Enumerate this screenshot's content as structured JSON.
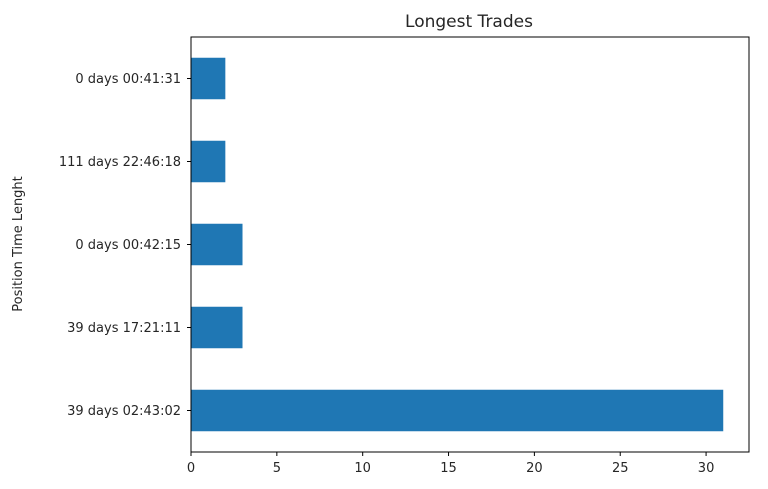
{
  "chart_data": {
    "type": "bar",
    "orientation": "horizontal",
    "title": "Longest Trades",
    "xlabel": "",
    "ylabel": "Position Time Lenght",
    "categories": [
      "39 days 02:43:02",
      "39 days 17:21:11",
      "0 days 00:42:15",
      "111 days 22:46:18",
      "0 days 00:41:31"
    ],
    "values": [
      31,
      3,
      3,
      2,
      2
    ],
    "xlim": [
      0,
      32.5
    ],
    "xticks": [
      0,
      5,
      10,
      15,
      20,
      25,
      30
    ],
    "bar_color": "#1f77b4",
    "grid": false,
    "legend": "none"
  }
}
